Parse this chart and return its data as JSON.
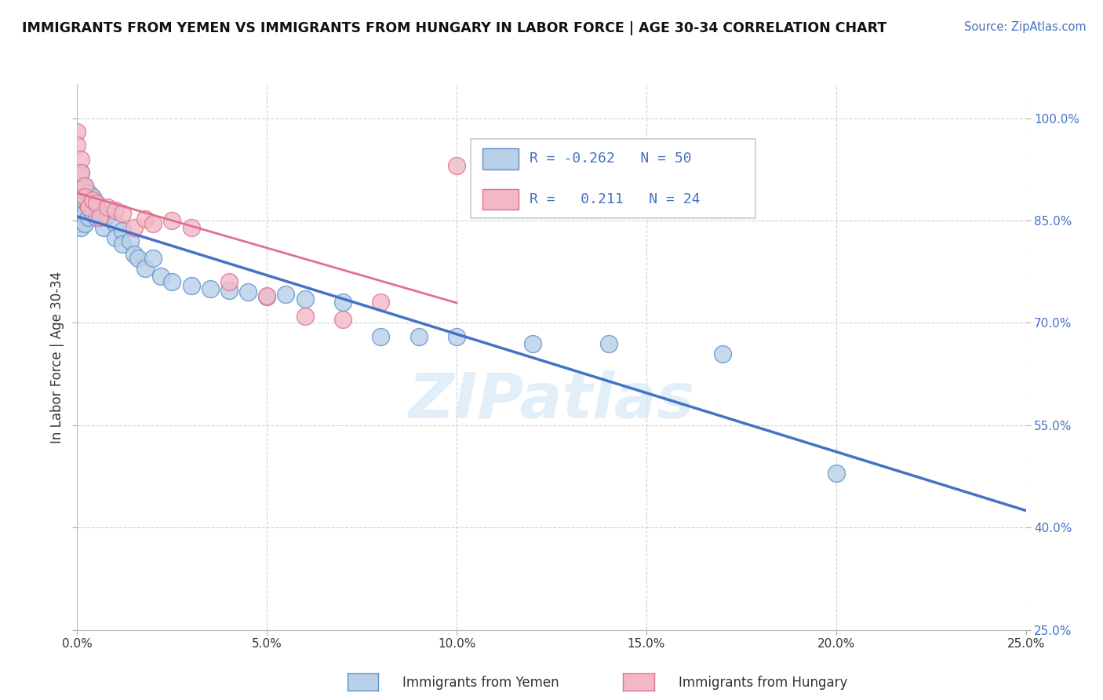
{
  "title": "IMMIGRANTS FROM YEMEN VS IMMIGRANTS FROM HUNGARY IN LABOR FORCE | AGE 30-34 CORRELATION CHART",
  "source": "Source: ZipAtlas.com",
  "ylabel": "In Labor Force | Age 30-34",
  "xlim": [
    0.0,
    0.25
  ],
  "ylim": [
    0.25,
    1.05
  ],
  "xticks": [
    0.0,
    0.05,
    0.1,
    0.15,
    0.2,
    0.25
  ],
  "yticks": [
    0.25,
    0.4,
    0.55,
    0.7,
    0.85,
    1.0
  ],
  "ytick_labels": [
    "25.0%",
    "40.0%",
    "55.0%",
    "70.0%",
    "85.0%",
    "100.0%"
  ],
  "xtick_labels": [
    "0.0%",
    "5.0%",
    "10.0%",
    "15.0%",
    "20.0%",
    "25.0%"
  ],
  "legend_r_yemen": "-0.262",
  "legend_n_yemen": "50",
  "legend_r_hungary": "0.211",
  "legend_n_hungary": "24",
  "yemen_fill": "#b8d0e8",
  "hungary_fill": "#f2b8c6",
  "yemen_edge": "#6090c8",
  "hungary_edge": "#e07090",
  "yemen_line_color": "#4472c4",
  "hungary_line_color": "#e07090",
  "watermark": "ZIPatlas",
  "yemen_x": [
    0.0,
    0.0,
    0.0,
    0.0,
    0.0,
    0.001,
    0.001,
    0.001,
    0.001,
    0.001,
    0.002,
    0.002,
    0.002,
    0.002,
    0.003,
    0.003,
    0.003,
    0.004,
    0.004,
    0.005,
    0.005,
    0.006,
    0.007,
    0.008,
    0.01,
    0.01,
    0.012,
    0.012,
    0.014,
    0.015,
    0.016,
    0.018,
    0.02,
    0.022,
    0.025,
    0.03,
    0.035,
    0.04,
    0.045,
    0.05,
    0.055,
    0.06,
    0.07,
    0.08,
    0.09,
    0.1,
    0.12,
    0.14,
    0.17,
    0.2
  ],
  "yemen_y": [
    0.895,
    0.878,
    0.87,
    0.858,
    0.845,
    0.92,
    0.9,
    0.878,
    0.86,
    0.84,
    0.9,
    0.878,
    0.86,
    0.845,
    0.89,
    0.872,
    0.855,
    0.885,
    0.862,
    0.875,
    0.855,
    0.862,
    0.84,
    0.858,
    0.845,
    0.825,
    0.835,
    0.815,
    0.82,
    0.8,
    0.795,
    0.78,
    0.795,
    0.768,
    0.76,
    0.755,
    0.75,
    0.748,
    0.745,
    0.738,
    0.742,
    0.735,
    0.73,
    0.68,
    0.68,
    0.68,
    0.67,
    0.67,
    0.655,
    0.48
  ],
  "hungary_x": [
    0.0,
    0.0,
    0.001,
    0.001,
    0.002,
    0.002,
    0.003,
    0.004,
    0.005,
    0.006,
    0.008,
    0.01,
    0.012,
    0.015,
    0.018,
    0.02,
    0.025,
    0.03,
    0.04,
    0.05,
    0.06,
    0.07,
    0.08,
    0.1
  ],
  "hungary_y": [
    0.98,
    0.96,
    0.94,
    0.92,
    0.9,
    0.885,
    0.87,
    0.88,
    0.875,
    0.855,
    0.87,
    0.865,
    0.86,
    0.84,
    0.852,
    0.845,
    0.85,
    0.84,
    0.76,
    0.74,
    0.71,
    0.705,
    0.73,
    0.93
  ]
}
